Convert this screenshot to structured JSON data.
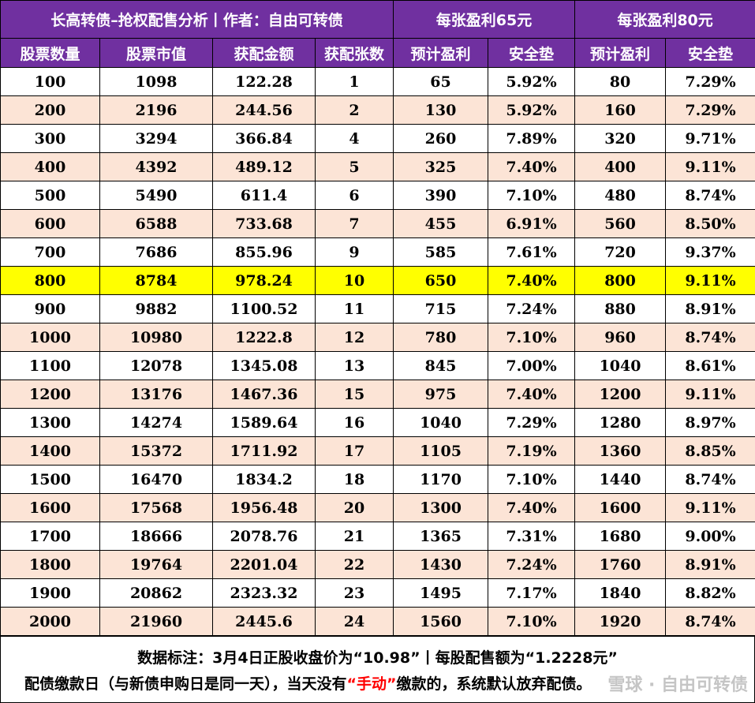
{
  "header": {
    "title": "长高转债–抢权配售分析丨作者：自由可转债",
    "group1": "每张盈利65元",
    "group2": "每张盈利80元",
    "columns": [
      "股票数量",
      "股票市值",
      "获配金额",
      "获配张数",
      "预计盈利",
      "安全垫",
      "预计盈利",
      "安全垫"
    ]
  },
  "rows": [
    [
      "100",
      "1098",
      "122.28",
      "1",
      "65",
      "5.92%",
      "80",
      "7.29%"
    ],
    [
      "200",
      "2196",
      "244.56",
      "2",
      "130",
      "5.92%",
      "160",
      "7.29%"
    ],
    [
      "300",
      "3294",
      "366.84",
      "4",
      "260",
      "7.89%",
      "320",
      "9.71%"
    ],
    [
      "400",
      "4392",
      "489.12",
      "5",
      "325",
      "7.40%",
      "400",
      "9.11%"
    ],
    [
      "500",
      "5490",
      "611.4",
      "6",
      "390",
      "7.10%",
      "480",
      "8.74%"
    ],
    [
      "600",
      "6588",
      "733.68",
      "7",
      "455",
      "6.91%",
      "560",
      "8.50%"
    ],
    [
      "700",
      "7686",
      "855.96",
      "9",
      "585",
      "7.61%",
      "720",
      "9.37%"
    ],
    [
      "800",
      "8784",
      "978.24",
      "10",
      "650",
      "7.40%",
      "800",
      "9.11%"
    ],
    [
      "900",
      "9882",
      "1100.52",
      "11",
      "715",
      "7.24%",
      "880",
      "8.91%"
    ],
    [
      "1000",
      "10980",
      "1222.8",
      "12",
      "780",
      "7.10%",
      "960",
      "8.74%"
    ],
    [
      "1100",
      "12078",
      "1345.08",
      "13",
      "845",
      "7.00%",
      "1040",
      "8.61%"
    ],
    [
      "1200",
      "13176",
      "1467.36",
      "15",
      "975",
      "7.40%",
      "1200",
      "9.11%"
    ],
    [
      "1300",
      "14274",
      "1589.64",
      "16",
      "1040",
      "7.29%",
      "1280",
      "8.97%"
    ],
    [
      "1400",
      "15372",
      "1711.92",
      "17",
      "1105",
      "7.19%",
      "1360",
      "8.85%"
    ],
    [
      "1500",
      "16470",
      "1834.2",
      "18",
      "1170",
      "7.10%",
      "1440",
      "8.74%"
    ],
    [
      "1600",
      "17568",
      "1956.48",
      "20",
      "1300",
      "7.40%",
      "1600",
      "9.11%"
    ],
    [
      "1700",
      "18666",
      "2078.76",
      "21",
      "1365",
      "7.31%",
      "1680",
      "9.00%"
    ],
    [
      "1800",
      "19764",
      "2201.04",
      "22",
      "1430",
      "7.24%",
      "1760",
      "8.91%"
    ],
    [
      "1900",
      "20862",
      "2323.32",
      "23",
      "1495",
      "7.17%",
      "1840",
      "8.82%"
    ],
    [
      "2000",
      "21960",
      "2445.6",
      "24",
      "1560",
      "7.10%",
      "1920",
      "8.74%"
    ]
  ],
  "highlight_row": "800",
  "footer": {
    "note1": "数据标注：3月4日正股收盘价为“10.98”丨每股配售额为“1.2228元”",
    "note2_before": "配债缴款日（与新债申购日是同一天），当天没有",
    "note2_red": "“手动”",
    "note2_after": "缴款的，系统默认放弃配债。",
    "watermark": "雪球 · 自由可转债"
  },
  "colors": {
    "header_bg": "#7030a0",
    "header_text": "#ffffff",
    "row_alt": "#fce4d6",
    "highlight": "#ffff00",
    "emphasis": "#ff0000"
  }
}
